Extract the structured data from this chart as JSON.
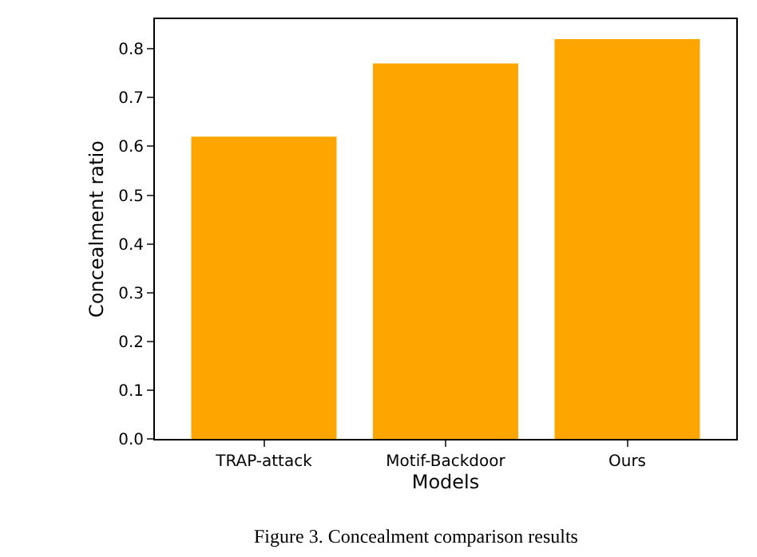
{
  "chart_data": {
    "type": "bar",
    "categories": [
      "TRAP-attack",
      "Motif-Backdoor",
      "Ours"
    ],
    "values": [
      0.62,
      0.77,
      0.82
    ],
    "color": "#ffa500",
    "xlabel": "Models",
    "ylabel": "Concealment ratio",
    "ylim": [
      0,
      0.861
    ],
    "yticks": [
      {
        "value": 0,
        "label": "0.0"
      },
      0.1,
      0.2,
      0.3,
      0.4,
      0.5,
      0.6,
      0.7,
      0.8
    ],
    "legend": false,
    "annotations": [
      "Figure 3. Concealment comparison results"
    ]
  }
}
